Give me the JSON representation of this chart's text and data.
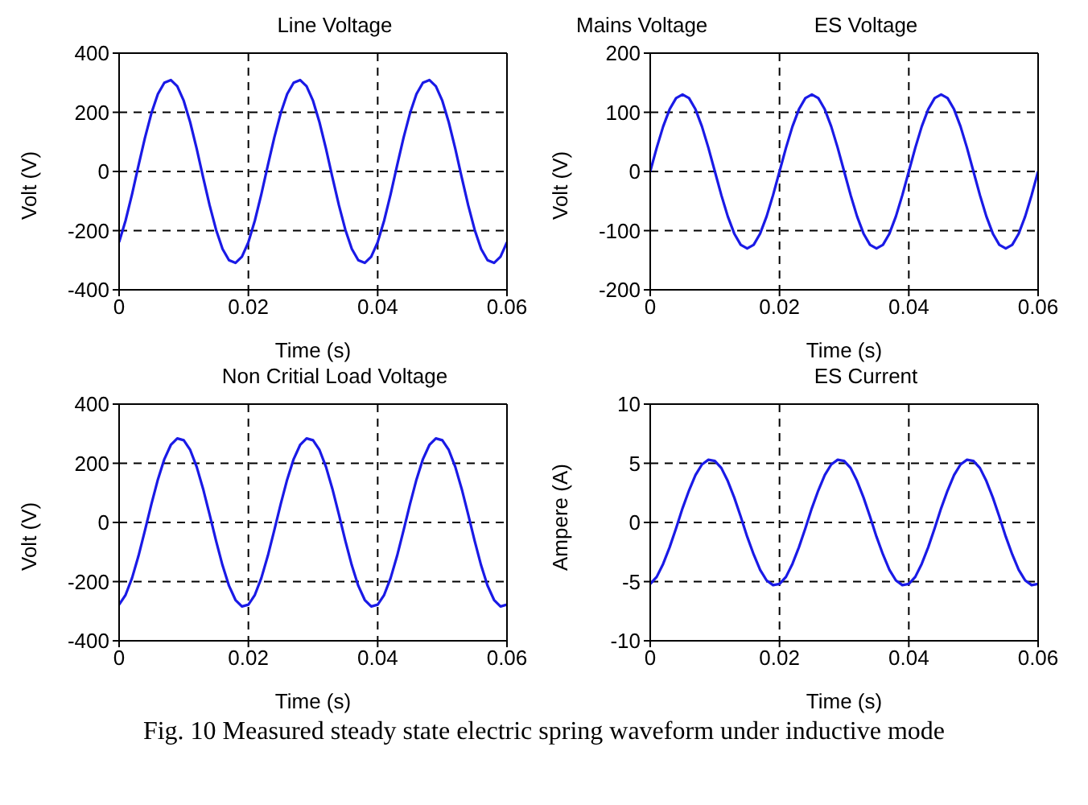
{
  "chart_data": [
    {
      "type": "line",
      "title": "Line Voltage",
      "xlabel": "Time (s)",
      "ylabel": "Volt (V)",
      "xlim": [
        0,
        0.06
      ],
      "xticks": [
        0,
        0.02,
        0.04,
        0.06
      ],
      "ylim": [
        -400,
        400
      ],
      "yticks": [
        -400,
        -200,
        0,
        200,
        400
      ],
      "grid": true,
      "marker": "none",
      "line_style": "solid",
      "x": [
        0,
        0.001,
        0.002,
        0.003,
        0.004,
        0.005,
        0.006,
        0.007,
        0.008,
        0.009,
        0.01,
        0.011,
        0.012,
        0.013,
        0.014,
        0.015,
        0.016,
        0.017,
        0.018,
        0.019,
        0.02,
        0.021,
        0.022,
        0.023,
        0.024,
        0.025,
        0.026,
        0.027,
        0.028,
        0.029,
        0.03,
        0.031,
        0.032,
        0.033,
        0.034,
        0.035,
        0.036,
        0.037,
        0.038,
        0.039,
        0.04,
        0.041,
        0.042,
        0.043,
        0.044,
        0.045,
        0.046,
        0.047,
        0.048,
        0.049,
        0.05,
        0.051,
        0.052,
        0.053,
        0.054,
        0.055,
        0.056,
        0.057,
        0.058,
        0.059,
        0.06
      ],
      "series": [
        {
          "color": "#1a1ae6",
          "values": [
            -239,
            -166,
            -77,
            20,
            114,
            197,
            262,
            300,
            309,
            288,
            239,
            166,
            77,
            -20,
            -114,
            -197,
            -262,
            -300,
            -309,
            -288,
            -239,
            -166,
            -77,
            20,
            114,
            197,
            262,
            300,
            309,
            288,
            239,
            166,
            77,
            -20,
            -114,
            -197,
            -262,
            -300,
            -309,
            -288,
            -239,
            -166,
            -77,
            20,
            114,
            197,
            262,
            300,
            309,
            288,
            239,
            166,
            77,
            -20,
            -114,
            -197,
            -262,
            -300,
            -309,
            -288,
            -239
          ]
        }
      ]
    },
    {
      "type": "line",
      "title": "ES Voltage",
      "annotations": [
        "Mains Voltage"
      ],
      "xlabel": "Time (s)",
      "ylabel": "Volt (V)",
      "xlim": [
        0,
        0.06
      ],
      "xticks": [
        0,
        0.02,
        0.04,
        0.06
      ],
      "ylim": [
        -200,
        200
      ],
      "yticks": [
        -200,
        -100,
        0,
        100,
        200
      ],
      "grid": true,
      "marker": "none",
      "line_style": "solid",
      "x": [
        0,
        0.001,
        0.002,
        0.003,
        0.004,
        0.005,
        0.006,
        0.007,
        0.008,
        0.009,
        0.01,
        0.011,
        0.012,
        0.013,
        0.014,
        0.015,
        0.016,
        0.017,
        0.018,
        0.019,
        0.02,
        0.021,
        0.022,
        0.023,
        0.024,
        0.025,
        0.026,
        0.027,
        0.028,
        0.029,
        0.03,
        0.031,
        0.032,
        0.033,
        0.034,
        0.035,
        0.036,
        0.037,
        0.038,
        0.039,
        0.04,
        0.041,
        0.042,
        0.043,
        0.044,
        0.045,
        0.046,
        0.047,
        0.048,
        0.049,
        0.05,
        0.051,
        0.052,
        0.053,
        0.054,
        0.055,
        0.056,
        0.057,
        0.058,
        0.059,
        0.06
      ],
      "series": [
        {
          "color": "#1a1ae6",
          "values": [
            0,
            40,
            76,
            105,
            124,
            130,
            124,
            105,
            76,
            40,
            0,
            -40,
            -76,
            -105,
            -124,
            -130,
            -124,
            -105,
            -76,
            -40,
            0,
            40,
            76,
            105,
            124,
            130,
            124,
            105,
            76,
            40,
            0,
            -40,
            -76,
            -105,
            -124,
            -130,
            -124,
            -105,
            -76,
            -40,
            0,
            40,
            76,
            105,
            124,
            130,
            124,
            105,
            76,
            40,
            0,
            -40,
            -76,
            -105,
            -124,
            -130,
            -124,
            -105,
            -76,
            -40,
            0
          ]
        }
      ]
    },
    {
      "type": "line",
      "title": "Non Critial Load Voltage",
      "xlabel": "Time (s)",
      "ylabel": "Volt (V)",
      "xlim": [
        0,
        0.06
      ],
      "xticks": [
        0,
        0.02,
        0.04,
        0.06
      ],
      "ylim": [
        -400,
        400
      ],
      "yticks": [
        -400,
        -200,
        0,
        200,
        400
      ],
      "grid": true,
      "marker": "none",
      "line_style": "solid",
      "x": [
        0,
        0.001,
        0.002,
        0.003,
        0.004,
        0.005,
        0.006,
        0.007,
        0.008,
        0.009,
        0.01,
        0.011,
        0.012,
        0.013,
        0.014,
        0.015,
        0.016,
        0.017,
        0.018,
        0.019,
        0.02,
        0.021,
        0.022,
        0.023,
        0.024,
        0.025,
        0.026,
        0.027,
        0.028,
        0.029,
        0.03,
        0.031,
        0.032,
        0.033,
        0.034,
        0.035,
        0.036,
        0.037,
        0.038,
        0.039,
        0.04,
        0.041,
        0.042,
        0.043,
        0.044,
        0.045,
        0.046,
        0.047,
        0.048,
        0.049,
        0.05,
        0.051,
        0.052,
        0.053,
        0.054,
        0.055,
        0.056,
        0.057,
        0.058,
        0.059,
        0.06
      ],
      "series": [
        {
          "color": "#1a1ae6",
          "values": [
            -278,
            -245,
            -188,
            -113,
            -27,
            62,
            145,
            214,
            262,
            284,
            278,
            245,
            188,
            113,
            27,
            -62,
            -145,
            -214,
            -262,
            -284,
            -278,
            -245,
            -188,
            -113,
            -27,
            62,
            145,
            214,
            262,
            284,
            278,
            245,
            188,
            113,
            27,
            -62,
            -145,
            -214,
            -262,
            -284,
            -278,
            -245,
            -188,
            -113,
            -27,
            62,
            145,
            214,
            262,
            284,
            278,
            245,
            188,
            113,
            27,
            -62,
            -145,
            -214,
            -262,
            -284,
            -278
          ]
        }
      ]
    },
    {
      "type": "line",
      "title": "ES Current",
      "annotations": [
        "Fig. 10 Measured steady state electric spring waveform under inductive mode"
      ],
      "xlabel": "Time (s)",
      "ylabel": "Ampere (A)",
      "xlim": [
        0,
        0.06
      ],
      "xticks": [
        0,
        0.02,
        0.04,
        0.06
      ],
      "ylim": [
        -10,
        10
      ],
      "yticks": [
        -10,
        -5,
        0,
        5,
        10
      ],
      "grid": true,
      "marker": "none",
      "line_style": "solid",
      "x": [
        0,
        0.001,
        0.002,
        0.003,
        0.004,
        0.005,
        0.006,
        0.007,
        0.008,
        0.009,
        0.01,
        0.011,
        0.012,
        0.013,
        0.014,
        0.015,
        0.016,
        0.017,
        0.018,
        0.019,
        0.02,
        0.021,
        0.022,
        0.023,
        0.024,
        0.025,
        0.026,
        0.027,
        0.028,
        0.029,
        0.03,
        0.031,
        0.032,
        0.033,
        0.034,
        0.035,
        0.036,
        0.037,
        0.038,
        0.039,
        0.04,
        0.041,
        0.042,
        0.043,
        0.044,
        0.045,
        0.046,
        0.047,
        0.048,
        0.049,
        0.05,
        0.051,
        0.052,
        0.053,
        0.054,
        0.055,
        0.056,
        0.057,
        0.058,
        0.059,
        0.06
      ],
      "series": [
        {
          "color": "#1a1ae6",
          "values": [
            -5.2,
            -4.6,
            -3.5,
            -2.1,
            -0.5,
            1.2,
            2.7,
            4.0,
            4.9,
            5.3,
            5.2,
            4.6,
            3.5,
            2.1,
            0.5,
            -1.2,
            -2.7,
            -4.0,
            -4.9,
            -5.3,
            -5.2,
            -4.6,
            -3.5,
            -2.1,
            -0.5,
            1.2,
            2.7,
            4.0,
            4.9,
            5.3,
            5.2,
            4.6,
            3.5,
            2.1,
            0.5,
            -1.2,
            -2.7,
            -4.0,
            -4.9,
            -5.3,
            -5.2,
            -4.6,
            -3.5,
            -2.1,
            -0.5,
            1.2,
            2.7,
            4.0,
            4.9,
            5.3,
            5.2,
            4.6,
            3.5,
            2.1,
            0.5,
            -1.2,
            -2.7,
            -4.0,
            -4.9,
            -5.3,
            -5.2
          ]
        }
      ]
    }
  ]
}
